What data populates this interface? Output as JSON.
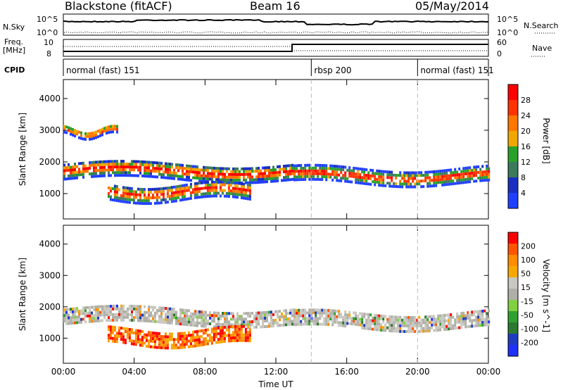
{
  "header": {
    "station": "Blackstone (fitACF)",
    "beam": "Beam 16",
    "date": "05/May/2014"
  },
  "panels": {
    "nsky_label": "N.Sky",
    "nsearch_label": "N.Search",
    "freq_label_1": "Freq.",
    "freq_label_2": "[MHz]",
    "nave_label": "Nave",
    "cpid_label": "CPID",
    "left_tick_top": "10^5",
    "left_tick_bottom": "10^0",
    "right_tick_top": "10^5",
    "right_tick_bottom": "10^0",
    "freq_tick_top": "10",
    "freq_tick_bottom": "8",
    "nave_tick_top": "60",
    "nave_tick_bottom": "0"
  },
  "cpid_segments": [
    {
      "label": "normal (fast) 151",
      "start": 0,
      "end": 14
    },
    {
      "label": "rbsp 200",
      "start": 14,
      "end": 20
    },
    {
      "label": "normal (fast) 151",
      "start": 20,
      "end": 24
    }
  ],
  "colors": {
    "power": [
      "#2040ff",
      "#1a2fc0",
      "#3b7a5a",
      "#2aa02a",
      "#f0a800",
      "#ff7700",
      "#ff3300",
      "#ff0000"
    ],
    "velocity": [
      "#ff0000",
      "#ff5500",
      "#ff8c00",
      "#f7a800",
      "#c8c8c0",
      "#b0b0a8",
      "#80d040",
      "#30a030",
      "#2c7a30",
      "#1f3cc0",
      "#2030ff"
    ]
  },
  "chart_data": [
    {
      "type": "heatmap",
      "title": "",
      "xlabel": "Time UT",
      "ylabel": "Slant Range [km]",
      "colorbar_label": "Power [dB]",
      "xlim": [
        0,
        24
      ],
      "ylim": [
        200,
        4600
      ],
      "x_ticks": [
        "00:00",
        "04:00",
        "08:00",
        "12:00",
        "16:00",
        "20:00",
        "00:00"
      ],
      "y_ticks": [
        1000,
        2000,
        3000,
        4000
      ],
      "colorbar_ticks": [
        4,
        8,
        12,
        16,
        20,
        24,
        28
      ],
      "bands": [
        {
          "t_start": 0,
          "t_end": 13,
          "center_km": 1750,
          "width_km": 500
        },
        {
          "t_start": 13,
          "t_end": 24,
          "center_km": 1600,
          "width_km": 450
        },
        {
          "t_start": 0,
          "t_end": 3,
          "center_km": 3000,
          "width_km": 250
        },
        {
          "t_start": 2.5,
          "t_end": 10.5,
          "center_km": 1100,
          "width_km": 500
        }
      ]
    },
    {
      "type": "heatmap",
      "title": "",
      "xlabel": "Time UT",
      "ylabel": "Slant Range [km]",
      "colorbar_label": "Velocity [m s^-1]",
      "xlim": [
        0,
        24
      ],
      "ylim": [
        200,
        4600
      ],
      "x_ticks": [
        "00:00",
        "04:00",
        "08:00",
        "12:00",
        "16:00",
        "20:00",
        "00:00"
      ],
      "y_ticks": [
        1000,
        2000,
        3000,
        4000
      ],
      "colorbar_ticks": [
        200,
        100,
        50,
        15,
        -15,
        -50,
        -100,
        -200
      ],
      "bands": [
        {
          "t_start": 0,
          "t_end": 13,
          "center_km": 1750,
          "width_km": 500
        },
        {
          "t_start": 13,
          "t_end": 24,
          "center_km": 1600,
          "width_km": 450
        },
        {
          "t_start": 2.5,
          "t_end": 10.5,
          "center_km": 1100,
          "width_km": 500
        }
      ]
    }
  ]
}
